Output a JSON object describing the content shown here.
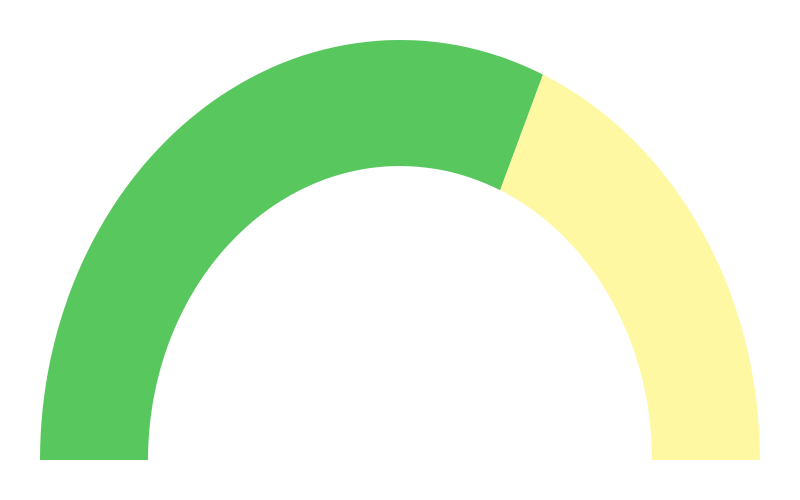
{
  "chart_data": {
    "type": "gauge",
    "min": 0,
    "max": 100,
    "value": 63,
    "segments": [
      {
        "from": 0,
        "to": 63,
        "color": "#57c75e"
      },
      {
        "from": 63,
        "to": 100,
        "color": "#fff8a3"
      }
    ],
    "background_color": "#ffffff"
  }
}
